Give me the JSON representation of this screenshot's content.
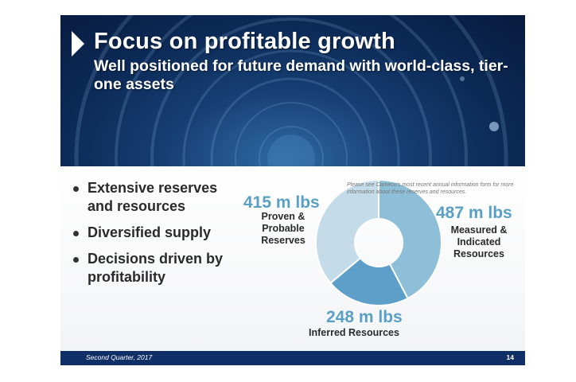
{
  "slide": {
    "title": "Focus on profitable growth",
    "subtitle": "Well positioned for future demand with world-class, tier-one assets",
    "bullets": [
      "Extensive reserves and resources",
      "Diversified supply",
      "Decisions driven by profitability"
    ],
    "note": "Please see Cameco's most recent annual information form for more information about these reserves and resources.",
    "footer_left": "Second Quarter, 2017",
    "page_number": "14"
  },
  "chart_data": {
    "type": "pie",
    "unit": "m lbs",
    "segments": [
      {
        "value": 487,
        "value_label": "487 m lbs",
        "label_lines": [
          "Measured &",
          "Indicated",
          "Resources"
        ],
        "color": "#8dbfd8"
      },
      {
        "value": 248,
        "value_label": "248 m lbs",
        "label_lines": [
          "Inferred Resources"
        ],
        "color": "#5d9fc8"
      },
      {
        "value": 415,
        "value_label": "415 m lbs",
        "label_lines": [
          "Proven &",
          "Probable",
          "Reserves"
        ],
        "color": "#c4dcea"
      }
    ]
  },
  "colors": {
    "banner_dark": "#0c2a57",
    "footer": "#0f2f66",
    "value_text": "#5a9fc4"
  }
}
